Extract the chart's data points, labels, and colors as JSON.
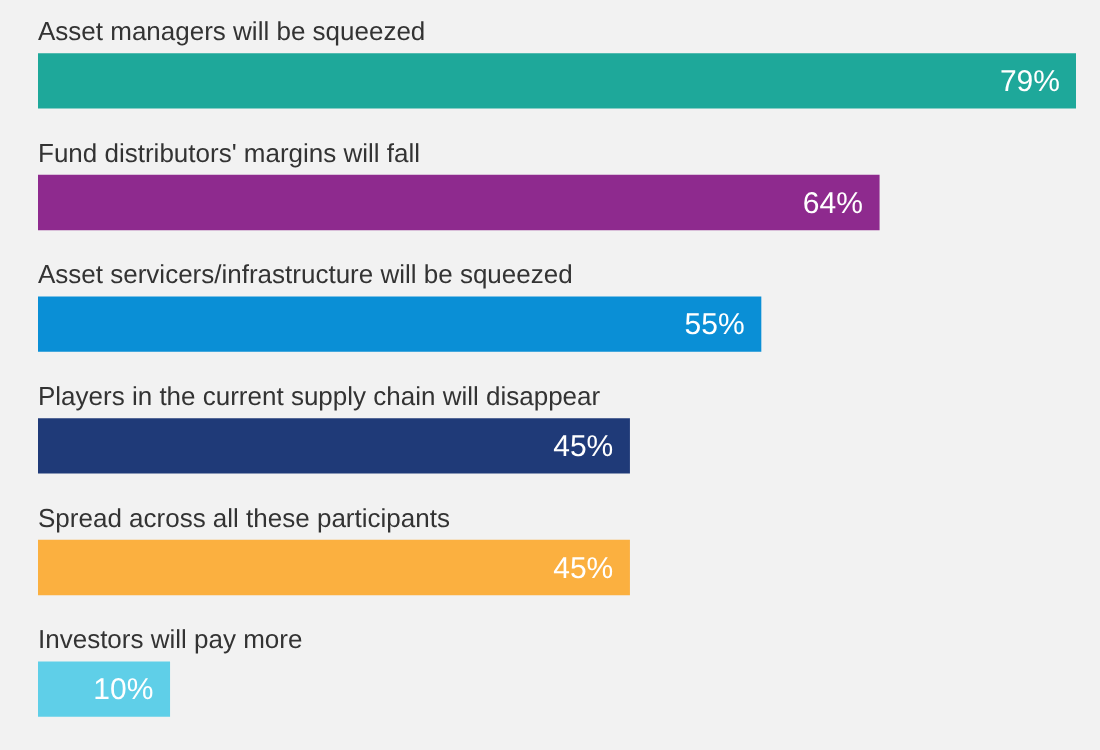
{
  "chart_data": {
    "type": "bar",
    "orientation": "horizontal",
    "categories": [
      "Asset managers will be squeezed",
      "Fund distributors' margins will fall",
      "Asset servicers/infrastructure will be squeezed",
      "Players in the current supply chain will disappear",
      "Spread across all these participants",
      "Investors will pay more"
    ],
    "values": [
      79,
      64,
      55,
      45,
      45,
      10
    ],
    "colors": [
      "#1ea89a",
      "#8e2a8e",
      "#0a8fd6",
      "#1f3a78",
      "#fbb040",
      "#5fcfe8"
    ],
    "value_labels": [
      "79%",
      "64%",
      "55%",
      "45%",
      "45%",
      "10%"
    ],
    "legend": false,
    "tick_labels": false
  }
}
